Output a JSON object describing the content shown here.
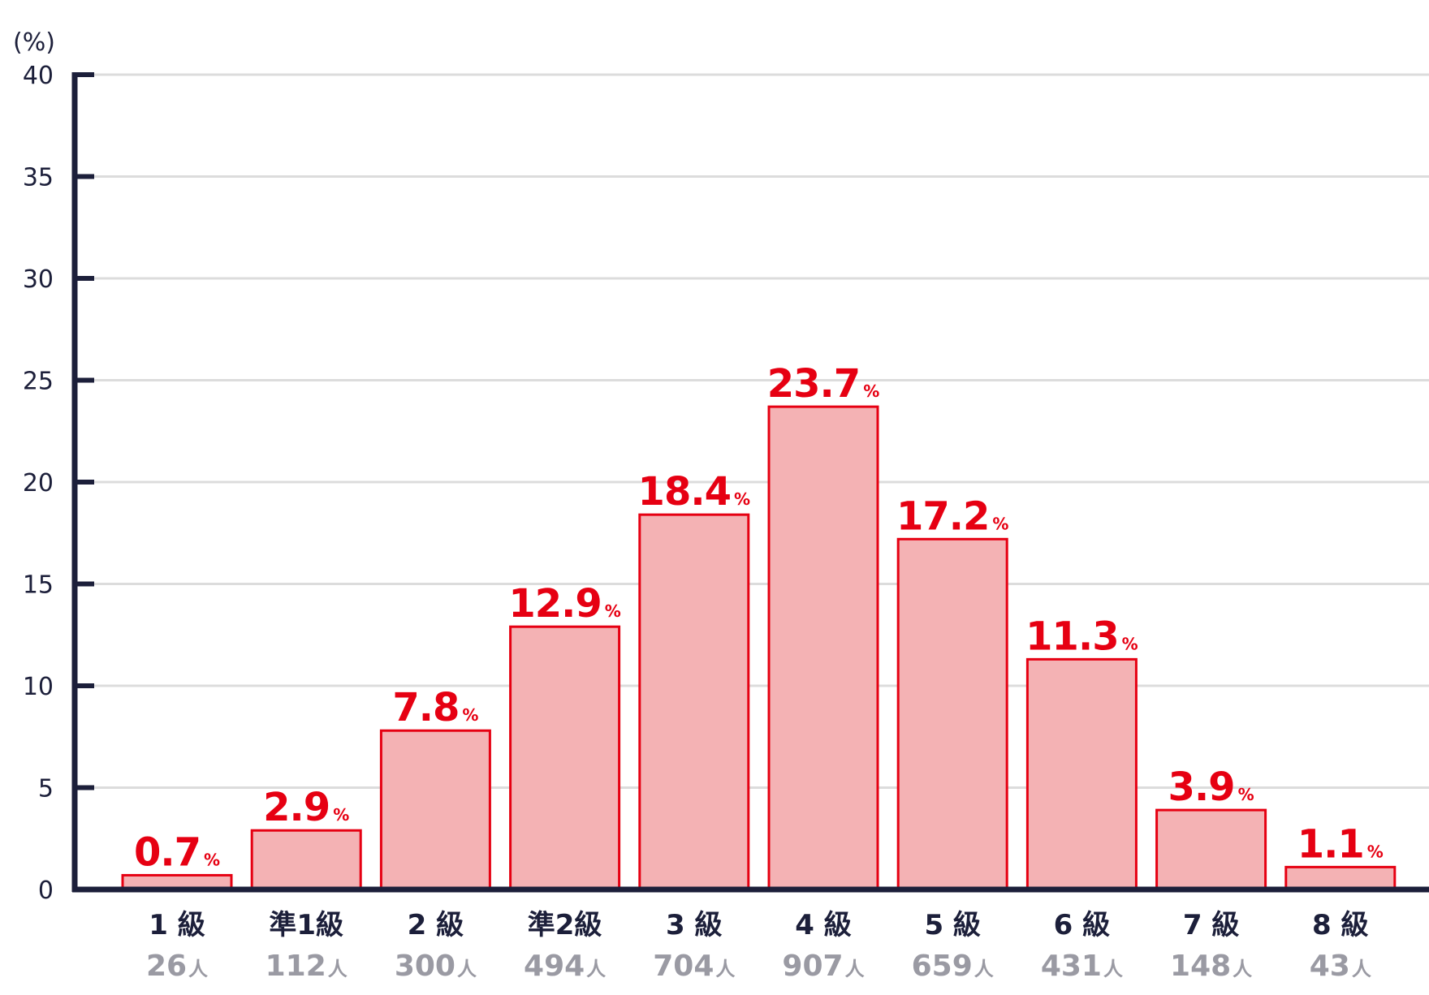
{
  "chart_data": {
    "type": "bar",
    "y_unit_label": "(%)",
    "ylim": [
      0,
      40
    ],
    "yticks": [
      0,
      5,
      10,
      15,
      20,
      25,
      30,
      35,
      40
    ],
    "grid": true,
    "categories": [
      "1 級",
      "準1級",
      "2 級",
      "準2級",
      "3 級",
      "4 級",
      "5 級",
      "6 級",
      "7 級",
      "8 級"
    ],
    "values": [
      0.7,
      2.9,
      7.8,
      12.9,
      18.4,
      23.7,
      17.2,
      11.3,
      3.9,
      1.1
    ],
    "value_labels": [
      "0.7",
      "2.9",
      "7.8",
      "12.9",
      "18.4",
      "23.7",
      "17.2",
      "11.3",
      "3.9",
      "1.1"
    ],
    "value_unit": "%",
    "counts": [
      "26",
      "112",
      "300",
      "494",
      "704",
      "907",
      "659",
      "431",
      "148",
      "43"
    ],
    "count_unit": "人",
    "colors": {
      "bar_fill": "#f4b2b4",
      "bar_stroke": "#e60012",
      "value_text": "#e60012",
      "axis": "#1c1f3a",
      "grid": "#dcdcdc",
      "count_text": "#9a9aa3"
    }
  }
}
